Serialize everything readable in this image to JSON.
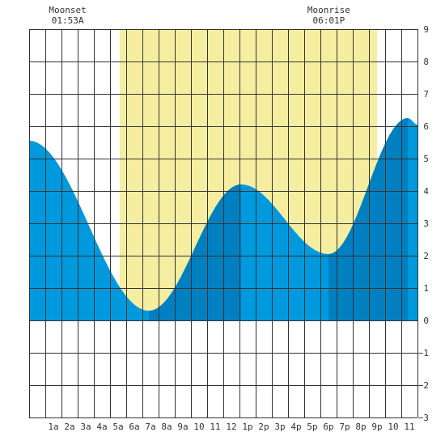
{
  "chart_data": {
    "type": "area",
    "title": "",
    "xlabel": "",
    "ylabel": "",
    "x_unit": "hour of day",
    "xlim": [
      -0.5,
      23.5
    ],
    "ylim": [
      -3,
      9
    ],
    "grid": true,
    "y_ticks": [
      "9",
      "8",
      "7",
      "6",
      "5",
      "4",
      "3",
      "2",
      "1",
      "0",
      "−1",
      "−2",
      "−3"
    ],
    "x_ticks": [
      {
        "hour": 1,
        "label": "1a"
      },
      {
        "hour": 2,
        "label": "2a"
      },
      {
        "hour": 3,
        "label": "3a"
      },
      {
        "hour": 4,
        "label": "4a"
      },
      {
        "hour": 5,
        "label": "5a"
      },
      {
        "hour": 6,
        "label": "6a"
      },
      {
        "hour": 7,
        "label": "7a"
      },
      {
        "hour": 8,
        "label": "8a"
      },
      {
        "hour": 9,
        "label": "9a"
      },
      {
        "hour": 10,
        "label": "10"
      },
      {
        "hour": 11,
        "label": "11"
      },
      {
        "hour": 12,
        "label": "12"
      },
      {
        "hour": 13,
        "label": "1p"
      },
      {
        "hour": 14,
        "label": "2p"
      },
      {
        "hour": 15,
        "label": "3p"
      },
      {
        "hour": 16,
        "label": "4p"
      },
      {
        "hour": 17,
        "label": "5p"
      },
      {
        "hour": 18,
        "label": "6p"
      },
      {
        "hour": 19,
        "label": "7p"
      },
      {
        "hour": 20,
        "label": "8p"
      },
      {
        "hour": 21,
        "label": "9p"
      },
      {
        "hour": 22,
        "label": "10"
      },
      {
        "hour": 23,
        "label": "11"
      }
    ],
    "daylight": [
      5.1,
      21.0
    ],
    "extremes": [
      {
        "hour": -0.5,
        "height": 5.55
      },
      {
        "hour": 6.9,
        "height": 0.3
      },
      {
        "hour": 12.6,
        "height": 4.2
      },
      {
        "hour": 18.0,
        "height": 2.05
      },
      {
        "hour": 22.9,
        "height": 6.25
      }
    ],
    "end": {
      "hour": 23.5,
      "height": 6.05
    },
    "dark_bands": [
      [
        6.9,
        12.6
      ],
      [
        18.0,
        22.9
      ]
    ],
    "moon_events": [
      {
        "label": "Moonset",
        "time": "01:53A",
        "hour": 1.88
      },
      {
        "label": "Moonrise",
        "time": "06:01P",
        "hour": 18.02
      }
    ],
    "colors": {
      "daylight": "#f5eea0",
      "night": "#ffffff",
      "tide": "#0099dd",
      "tide_dark": "#0080c0",
      "grid": "#333333",
      "text": "#333333"
    }
  }
}
